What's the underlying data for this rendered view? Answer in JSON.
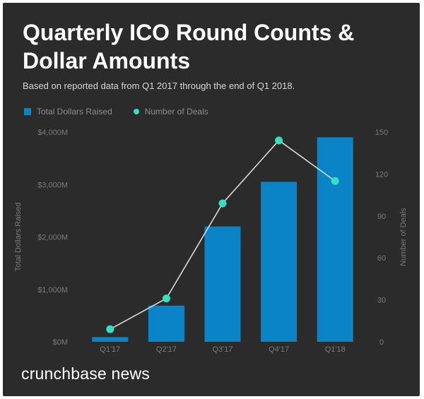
{
  "title": "Quarterly ICO Round Counts & Dollar Amounts",
  "subtitle": "Based on reported data from Q1 2017 through the end of Q1 2018.",
  "brand": "crunchbase news",
  "colors": {
    "background": "#2b2b2b",
    "bar": "#0a84c6",
    "line": "#d9d9d9",
    "point": "#33e0c0",
    "axis_text": "#7a7a7a"
  },
  "legend": {
    "bar_label": "Total Dollars Raised",
    "line_label": "Number of Deals"
  },
  "chart_data": {
    "type": "bar+line",
    "categories": [
      "Q1'17",
      "Q2'17",
      "Q3'17",
      "Q4'17",
      "Q1'18"
    ],
    "series": [
      {
        "name": "Total Dollars Raised",
        "type": "bar",
        "axis": "left",
        "values": [
          90,
          690,
          2200,
          3050,
          3900
        ]
      },
      {
        "name": "Number of Deals",
        "type": "line",
        "axis": "right",
        "values": [
          9,
          31,
          99,
          144,
          115
        ]
      }
    ],
    "left_axis": {
      "label": "Total Dollars Raised",
      "ticks": [
        0,
        1000,
        2000,
        3000,
        4000
      ],
      "tick_labels": [
        "$0M",
        "$1,000M",
        "$2,000M",
        "$3,000M",
        "$4,000M"
      ],
      "range": [
        0,
        4000
      ]
    },
    "right_axis": {
      "label": "Number of Deals",
      "ticks": [
        0,
        30,
        60,
        90,
        120,
        150
      ],
      "tick_labels": [
        "0",
        "30",
        "60",
        "90",
        "120",
        "150"
      ],
      "range": [
        0,
        150
      ]
    },
    "grid": false,
    "legend_position": "top-left"
  }
}
